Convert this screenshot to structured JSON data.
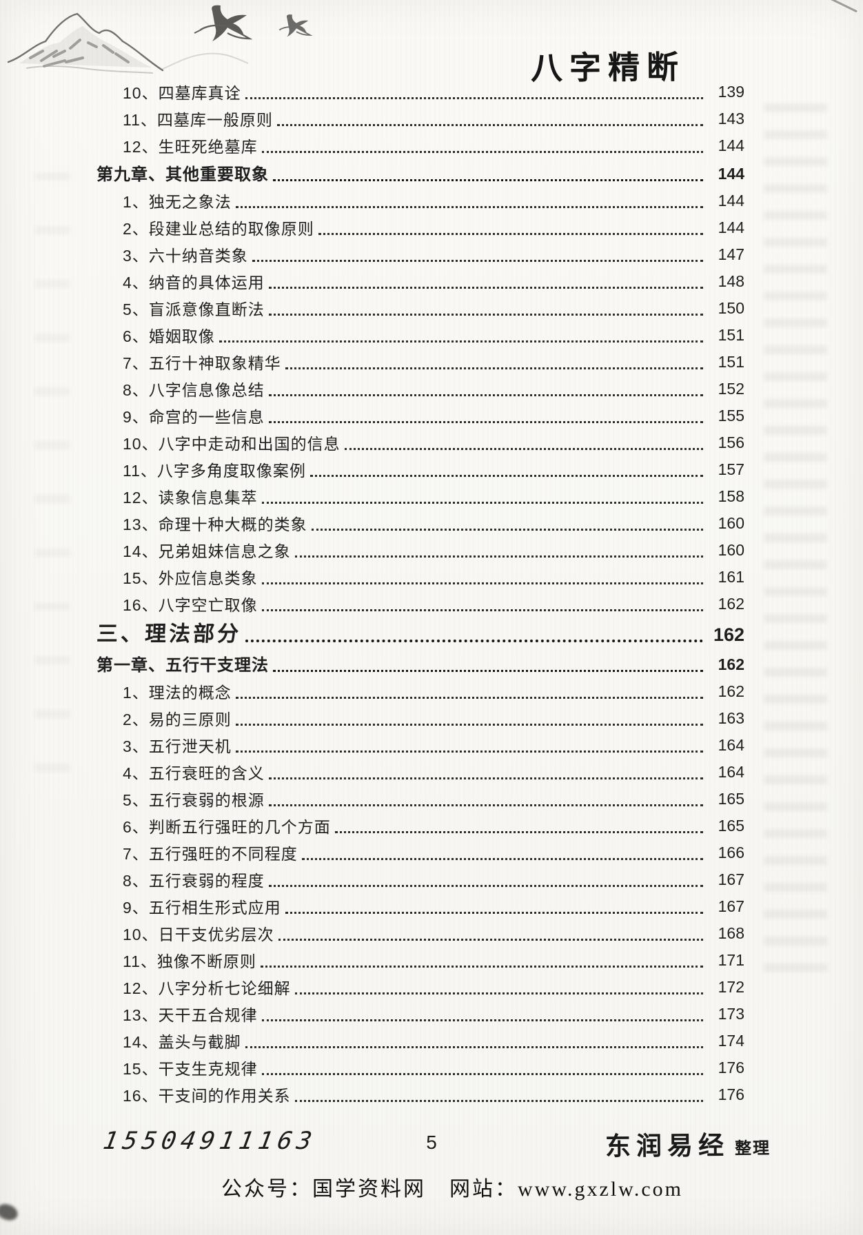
{
  "header": {
    "title": "八字精断"
  },
  "toc": {
    "rows": [
      {
        "label": "10、四墓库真诠",
        "page": "139",
        "type": "item"
      },
      {
        "label": "11、四墓库一般原则",
        "page": "143",
        "type": "item"
      },
      {
        "label": "12、生旺死绝墓库",
        "page": "144",
        "type": "item"
      },
      {
        "label": "第九章、其他重要取象",
        "page": "144",
        "type": "chapter"
      },
      {
        "label": "1、独无之象法",
        "page": "144",
        "type": "item"
      },
      {
        "label": "2、段建业总结的取像原则",
        "page": "144",
        "type": "item"
      },
      {
        "label": "3、六十纳音类象",
        "page": "147",
        "type": "item"
      },
      {
        "label": "4、纳音的具体运用",
        "page": "148",
        "type": "item"
      },
      {
        "label": "5、盲派意像直断法",
        "page": "150",
        "type": "item"
      },
      {
        "label": "6、婚姻取像",
        "page": "151",
        "type": "item"
      },
      {
        "label": "7、五行十神取象精华",
        "page": "151",
        "type": "item"
      },
      {
        "label": "8、八字信息像总结",
        "page": "152",
        "type": "item"
      },
      {
        "label": "9、命宫的一些信息",
        "page": "155",
        "type": "item"
      },
      {
        "label": "10、八字中走动和出国的信息",
        "page": "156",
        "type": "item"
      },
      {
        "label": "11、八字多角度取像案例",
        "page": "157",
        "type": "item"
      },
      {
        "label": "12、读象信息集萃",
        "page": "158",
        "type": "item"
      },
      {
        "label": "13、命理十种大概的类象",
        "page": "160",
        "type": "item"
      },
      {
        "label": "14、兄弟姐妹信息之象",
        "page": "160",
        "type": "item"
      },
      {
        "label": "15、外应信息类象",
        "page": "161",
        "type": "item"
      },
      {
        "label": "16、八字空亡取像",
        "page": "162",
        "type": "item"
      },
      {
        "label": "三、理法部分",
        "page": "162",
        "type": "part"
      },
      {
        "label": "第一章、五行干支理法",
        "page": "162",
        "type": "chapter"
      },
      {
        "label": "1、理法的概念",
        "page": "162",
        "type": "item"
      },
      {
        "label": "2、易的三原则",
        "page": "163",
        "type": "item"
      },
      {
        "label": "3、五行泄天机",
        "page": "164",
        "type": "item"
      },
      {
        "label": "4、五行衰旺的含义",
        "page": "164",
        "type": "item"
      },
      {
        "label": "5、五行衰弱的根源",
        "page": "165",
        "type": "item"
      },
      {
        "label": "6、判断五行强旺的几个方面",
        "page": "165",
        "type": "item"
      },
      {
        "label": "7、五行强旺的不同程度",
        "page": "166",
        "type": "item"
      },
      {
        "label": "8、五行衰弱的程度",
        "page": "167",
        "type": "item"
      },
      {
        "label": "9、五行相生形式应用",
        "page": "167",
        "type": "item"
      },
      {
        "label": "10、日干支优劣层次",
        "page": "168",
        "type": "item"
      },
      {
        "label": "11、独像不断原则",
        "page": "171",
        "type": "item"
      },
      {
        "label": "12、八字分析七论细解",
        "page": "172",
        "type": "item"
      },
      {
        "label": "13、天干五合规律",
        "page": "173",
        "type": "item"
      },
      {
        "label": "14、盖头与截脚",
        "page": "174",
        "type": "item"
      },
      {
        "label": "15、干支生克规律",
        "page": "176",
        "type": "item"
      },
      {
        "label": "16、干支间的作用关系",
        "page": "176",
        "type": "item"
      }
    ]
  },
  "footer": {
    "phone": "15504911163",
    "page_number": "5",
    "publisher": "东润易经",
    "publisher_suffix": "整理",
    "wechat": "公众号：国学资料网",
    "website": "网站：www.gxzlw.com"
  }
}
